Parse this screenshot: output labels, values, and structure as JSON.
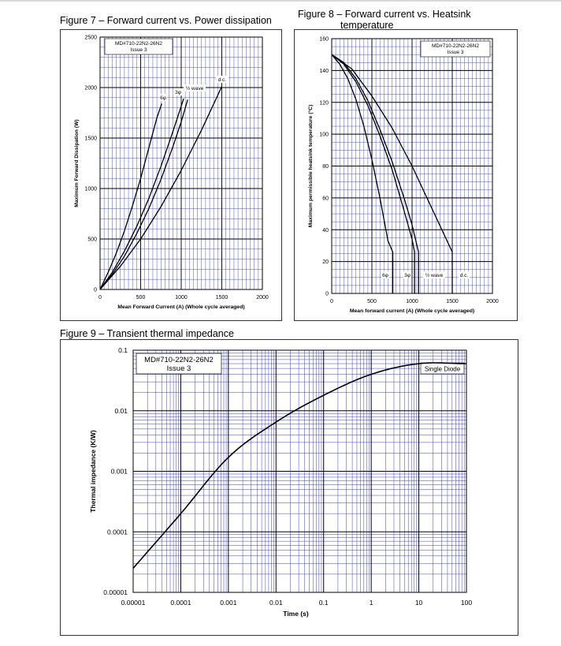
{
  "figures": {
    "fig7": {
      "title": "Figure 7 – Forward current vs. Power dissipation",
      "note_line1": "MD#710-22N2-26N2",
      "note_line2": "Issue 3"
    },
    "fig8": {
      "title_line1": "Figure 8 – Forward current vs. Heatsink",
      "title_line2": "temperature",
      "note_line1": "MD#710-22N2-26N2",
      "note_line2": "Issue 3"
    },
    "fig9": {
      "title": "Figure 9 – Transient thermal impedance",
      "note_line1": "MD#710-22N2-26N2",
      "note_line2": "Issue 3",
      "legend": "Single Diode"
    }
  },
  "colors": {
    "grid_minor": "#3a3ae8",
    "grid_major": "#000000",
    "curve": "#000000",
    "frame": "#333333"
  },
  "chart_data": [
    {
      "id": "fig7",
      "type": "line",
      "title": "Figure 7 – Forward current vs. Power dissipation",
      "xlabel": "Mean Forward Current (A) (Whole cycle averaged)",
      "ylabel": "Maximum Forward Dissipation (W)",
      "xlim": [
        0,
        2000
      ],
      "ylim": [
        0,
        2500
      ],
      "xticks": [
        0,
        500,
        1000,
        1500,
        2000
      ],
      "yticks": [
        0,
        500,
        1000,
        1500,
        2000,
        2500
      ],
      "xtick_labels": [
        "0",
        "500",
        "1000",
        "1500",
        "2000"
      ],
      "ytick_labels": [
        "0",
        "500",
        "1000",
        "1500",
        "2000",
        "2500"
      ],
      "grid": true,
      "series": [
        {
          "name": "6φ",
          "x": [
            0,
            100,
            200,
            300,
            400,
            500,
            600,
            700,
            760
          ],
          "y": [
            0,
            170,
            360,
            580,
            830,
            1100,
            1400,
            1700,
            1840
          ]
        },
        {
          "name": "3φ",
          "x": [
            0,
            150,
            300,
            450,
            600,
            750,
            900,
            1030
          ],
          "y": [
            0,
            170,
            380,
            620,
            900,
            1220,
            1570,
            1890
          ]
        },
        {
          "name": "½ wave",
          "x": [
            0,
            150,
            300,
            450,
            600,
            750,
            900,
            1000,
            1080
          ],
          "y": [
            0,
            150,
            330,
            550,
            800,
            1090,
            1420,
            1660,
            1880
          ]
        },
        {
          "name": "d.c.",
          "x": [
            0,
            250,
            500,
            750,
            1000,
            1250,
            1500
          ],
          "y": [
            0,
            230,
            500,
            820,
            1180,
            1580,
            2010
          ]
        }
      ],
      "labels": [
        "6φ",
        "3φ",
        "½ wave",
        "d.c."
      ]
    },
    {
      "id": "fig8",
      "type": "line",
      "title": "Figure 8 – Forward current vs. Heatsink temperature",
      "xlabel": "Mean forward current (A) (Whole cycle averaged)",
      "ylabel": "Maximum permissible heatsink temperature (°C)",
      "xlim": [
        0,
        2000
      ],
      "ylim": [
        0,
        160
      ],
      "xticks": [
        0,
        500,
        1000,
        1500,
        2000
      ],
      "yticks": [
        0,
        20,
        40,
        60,
        80,
        100,
        120,
        140,
        160
      ],
      "xtick_labels": [
        "0",
        "500",
        "1000",
        "1500",
        "2000"
      ],
      "ytick_labels": [
        "0",
        "20",
        "40",
        "60",
        "80",
        "100",
        "120",
        "140",
        "160"
      ],
      "grid": true,
      "series": [
        {
          "name": "6φ",
          "x": [
            0,
            100,
            200,
            300,
            400,
            500,
            600,
            700,
            760,
            760
          ],
          "y": [
            150,
            144,
            135,
            122,
            105,
            84,
            60,
            33,
            26,
            0
          ]
        },
        {
          "name": "3φ",
          "x": [
            0,
            150,
            300,
            450,
            600,
            750,
            900,
            1000,
            1030,
            1030
          ],
          "y": [
            150,
            144,
            133,
            118,
            99,
            78,
            52,
            34,
            26,
            0
          ]
        },
        {
          "name": "½ wave",
          "x": [
            0,
            150,
            300,
            450,
            600,
            750,
            900,
            1000,
            1080,
            1080
          ],
          "y": [
            150,
            145,
            135,
            121,
            103,
            83,
            60,
            43,
            26,
            0
          ]
        },
        {
          "name": "d.c.",
          "x": [
            0,
            250,
            500,
            750,
            1000,
            1250,
            1500,
            1500
          ],
          "y": [
            150,
            141,
            124,
            104,
            80,
            53,
            26,
            0
          ]
        }
      ],
      "labels": [
        "6φ",
        "3φ",
        "½ wave",
        "d.c."
      ]
    },
    {
      "id": "fig9",
      "type": "line",
      "title": "Figure 9 – Transient thermal impedance",
      "xlabel": "Time (s)",
      "ylabel": "Thermal impedance (K/W)",
      "xscale": "log",
      "yscale": "log",
      "xlim": [
        1e-05,
        100
      ],
      "ylim": [
        1e-05,
        0.1
      ],
      "xticks": [
        1e-05,
        0.0001,
        0.001,
        0.01,
        0.1,
        1,
        10,
        100
      ],
      "yticks": [
        1e-05,
        0.0001,
        0.001,
        0.01,
        0.1
      ],
      "xtick_labels": [
        "0.00001",
        "0.0001",
        "0.001",
        "0.01",
        "0.1",
        "1",
        "10",
        "100"
      ],
      "ytick_labels": [
        "0.00001",
        "0.0001",
        "0.001",
        "0.01",
        "0.1"
      ],
      "grid": true,
      "series": [
        {
          "name": "Single Diode",
          "x": [
            1e-05,
            0.0001,
            0.001,
            0.01,
            0.1,
            1,
            10,
            100
          ],
          "y": [
            2.5e-05,
            0.0002,
            0.0017,
            0.0065,
            0.018,
            0.04,
            0.06,
            0.06
          ]
        }
      ]
    }
  ]
}
